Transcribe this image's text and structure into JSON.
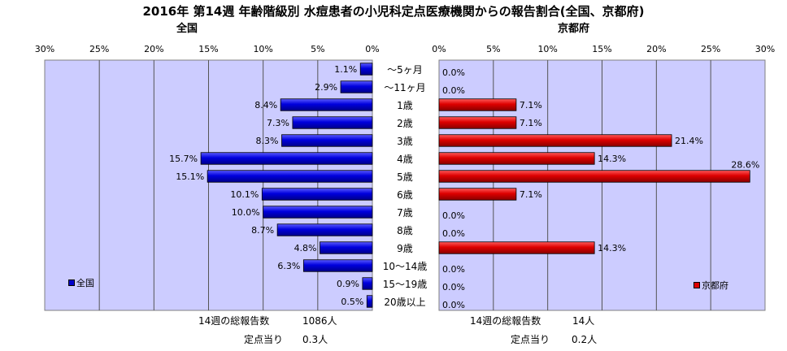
{
  "title": "2016年 第14週 年齢階級別 水痘患者の小児科定点医療機関からの報告割合(全国、京都府)",
  "chart_data": {
    "type": "bar",
    "orientation": "horizontal-butterfly",
    "categories": [
      "～5ヶ月",
      "～11ヶ月",
      "1歳",
      "2歳",
      "3歳",
      "4歳",
      "5歳",
      "6歳",
      "7歳",
      "8歳",
      "9歳",
      "10～14歳",
      "15～19歳",
      "20歳以上"
    ],
    "xlim": [
      0,
      30
    ],
    "tick_labels": [
      "0%",
      "5%",
      "10%",
      "15%",
      "20%",
      "25%",
      "30%"
    ],
    "grid": true,
    "series": [
      {
        "name": "全国",
        "header": "全国",
        "color": "#0000cc",
        "direction": "left",
        "values": [
          1.1,
          2.9,
          8.4,
          7.3,
          8.3,
          15.7,
          15.1,
          10.1,
          10.0,
          8.7,
          4.8,
          6.3,
          0.9,
          0.5
        ],
        "labels": [
          "1.1%",
          "2.9%",
          "8.4%",
          "7.3%",
          "8.3%",
          "15.7%",
          "15.1%",
          "10.1%",
          "10.0%",
          "8.7%",
          "4.8%",
          "6.3%",
          "0.9%",
          "0.5%"
        ],
        "legend_position": "bottom-left"
      },
      {
        "name": "京都府",
        "header": "京都府",
        "color": "#dd0000",
        "direction": "right",
        "values": [
          0.0,
          0.0,
          7.1,
          7.1,
          21.4,
          14.3,
          28.6,
          7.1,
          0.0,
          0.0,
          14.3,
          0.0,
          0.0,
          0.0
        ],
        "labels": [
          "0.0%",
          "0.0%",
          "7.1%",
          "7.1%",
          "21.4%",
          "14.3%",
          "28.6%",
          "7.1%",
          "0.0%",
          "0.0%",
          "14.3%",
          "0.0%",
          "0.0%",
          "0.0%"
        ],
        "legend_position": "bottom-right"
      }
    ],
    "plot_background": "#ccccff"
  },
  "footer": {
    "left": {
      "total_label": "14週の総報告数",
      "total_value": "1086人",
      "per_label": "定点当り",
      "per_value": "0.3人"
    },
    "right": {
      "total_label": "14週の総報告数",
      "total_value": "14人",
      "per_label": "定点当り",
      "per_value": "0.2人"
    }
  }
}
